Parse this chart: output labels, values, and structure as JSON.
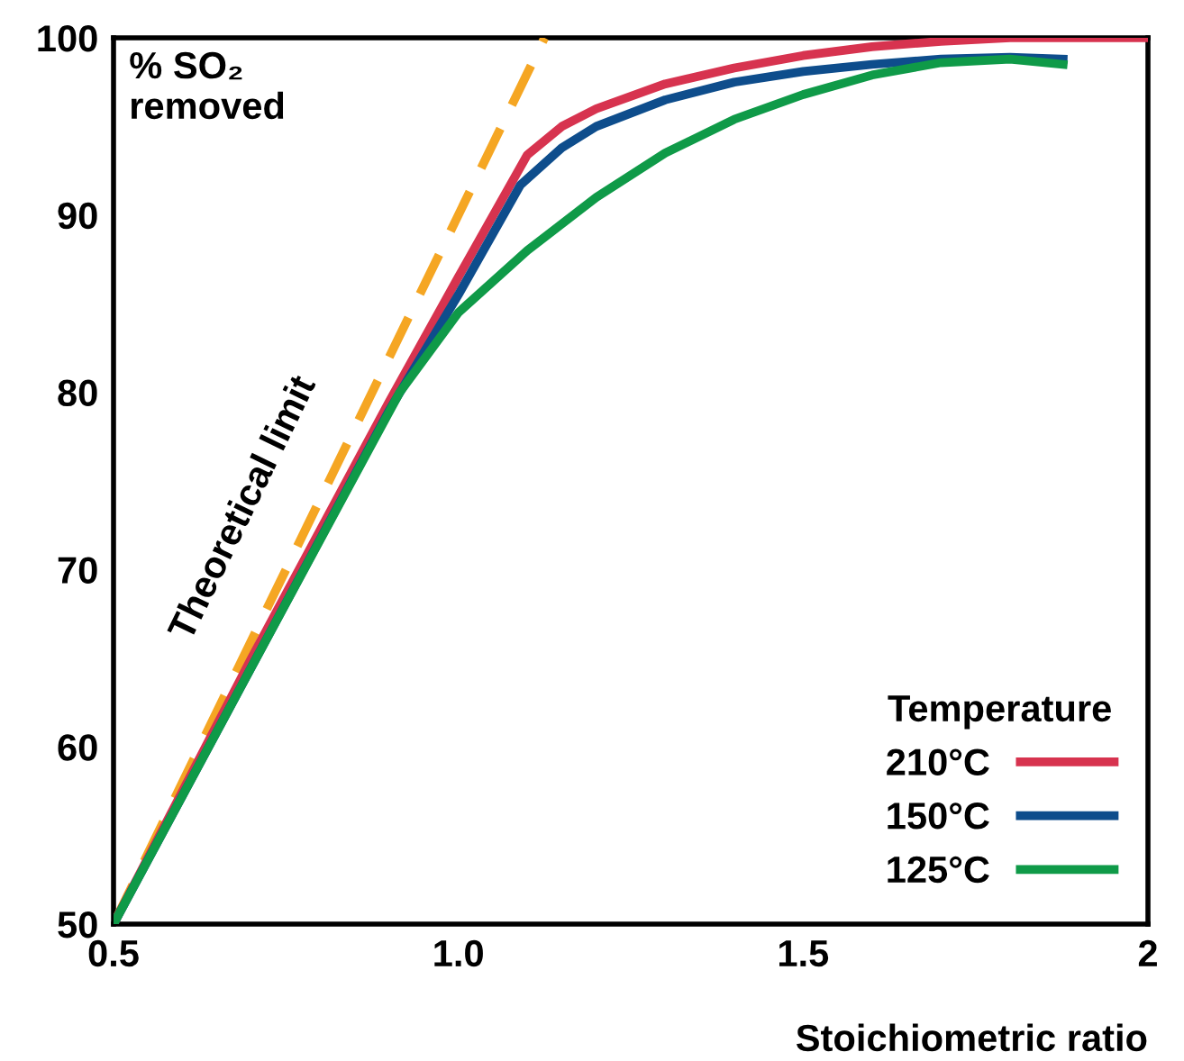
{
  "chart_data": {
    "type": "line",
    "ylabel": "% SO₂\nremoved",
    "xlabel": "Stoichiometric ratio",
    "legend_title": "Temperature",
    "legend": "bottom right",
    "grid": false,
    "marker": "none",
    "xlim": [
      0.5,
      2
    ],
    "ylim": [
      50,
      100
    ],
    "xticks": [
      0.5,
      {
        "value": 1.0,
        "label": "1.0"
      },
      1.5,
      2
    ],
    "yticks": [
      50,
      60,
      70,
      80,
      90,
      100
    ],
    "series": [
      {
        "name": "Theoretical limit",
        "color": "#f5a623",
        "line_style": "dashed",
        "x": [
          0.5,
          1.125
        ],
        "values": [
          50,
          100
        ]
      },
      {
        "name": "210°C",
        "color": "#d7334f",
        "line_style": "solid",
        "x": [
          0.5,
          0.7,
          0.9,
          1.0,
          1.1,
          1.15,
          1.2,
          1.3,
          1.4,
          1.5,
          1.6,
          1.7,
          1.8,
          2.0
        ],
        "values": [
          50,
          65,
          79.5,
          86.5,
          93.4,
          95,
          96,
          97.4,
          98.3,
          99,
          99.5,
          99.8,
          100,
          100
        ]
      },
      {
        "name": "150°C",
        "color": "#0e4d8c",
        "line_style": "solid",
        "x": [
          0.5,
          0.7,
          0.9,
          1.0,
          1.09,
          1.15,
          1.2,
          1.3,
          1.4,
          1.5,
          1.6,
          1.7,
          1.8,
          1.877
        ],
        "values": [
          50,
          64.5,
          79,
          85.5,
          91.7,
          93.8,
          95,
          96.5,
          97.5,
          98.1,
          98.5,
          98.8,
          98.9,
          98.8
        ]
      },
      {
        "name": "125°C",
        "color": "#0f9a48",
        "line_style": "solid",
        "x": [
          0.5,
          0.7,
          0.915,
          1.0,
          1.1,
          1.2,
          1.3,
          1.4,
          1.5,
          1.6,
          1.7,
          1.8,
          1.877
        ],
        "values": [
          50,
          64.5,
          80,
          84.5,
          88,
          91,
          93.5,
          95.4,
          96.8,
          97.9,
          98.6,
          98.8,
          98.5
        ]
      }
    ]
  }
}
